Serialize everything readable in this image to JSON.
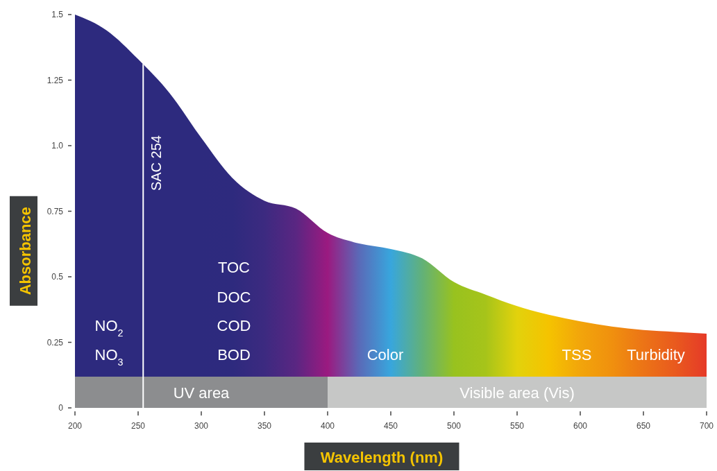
{
  "chart_data": {
    "type": "area",
    "xlabel": "Wavelength (nm)",
    "ylabel": "Absorbance",
    "x": [
      200,
      225,
      250,
      275,
      300,
      325,
      350,
      375,
      400,
      425,
      450,
      475,
      500,
      525,
      550,
      575,
      600,
      625,
      650,
      675,
      700
    ],
    "series": [
      {
        "values": [
          1.5,
          1.44,
          1.33,
          1.2,
          1.03,
          0.875,
          0.79,
          0.76,
          0.667,
          0.627,
          0.606,
          0.57,
          0.48,
          0.432,
          0.388,
          0.355,
          0.33,
          0.31,
          0.297,
          0.29,
          0.283
        ],
        "colors": [
          "#2d2a7e",
          "#2d2a7e",
          "#2d2a7e",
          "#2d2a7e",
          "#2d2a7e",
          "#2e2a7e",
          "#3c2a80",
          "#5a2682",
          "#9b1a80",
          "#5a6ab8",
          "#38a6dd",
          "#62b178",
          "#98c21f",
          "#a6c41a",
          "#e2d20c",
          "#f5c300",
          "#f2a50b",
          "#f0900e",
          "#ec7416",
          "#e95a1e",
          "#e53a28"
        ]
      }
    ],
    "xlim": [
      200,
      700
    ],
    "xticks": [
      200,
      250,
      300,
      350,
      400,
      450,
      500,
      550,
      600,
      650,
      700
    ],
    "ylim": [
      0,
      1.5
    ],
    "yticks": [
      0,
      0.25,
      {
        "value": 0.5,
        "label": "0.5"
      },
      0.75,
      {
        "value": 1,
        "label": "1.0"
      },
      1.25,
      1.5
    ],
    "ref_lines": [
      {
        "axis": "x",
        "value": 254,
        "label": "SAC 254",
        "color": "#ffffff"
      }
    ],
    "bands": [
      {
        "axis": "x",
        "from": 200,
        "to": 400,
        "label": "UV area",
        "color": "#8c8d8f"
      },
      {
        "axis": "x",
        "from": 400,
        "to": 700,
        "label": "Visible area (Vis)",
        "color": "#c6c7c6"
      }
    ],
    "annotations": [
      "NO$_{2}$",
      "NO$_{3}$",
      "TOC",
      "DOC",
      "COD",
      "BOD",
      "Color",
      "TSS",
      "Turbidity"
    ],
    "grid": false
  }
}
